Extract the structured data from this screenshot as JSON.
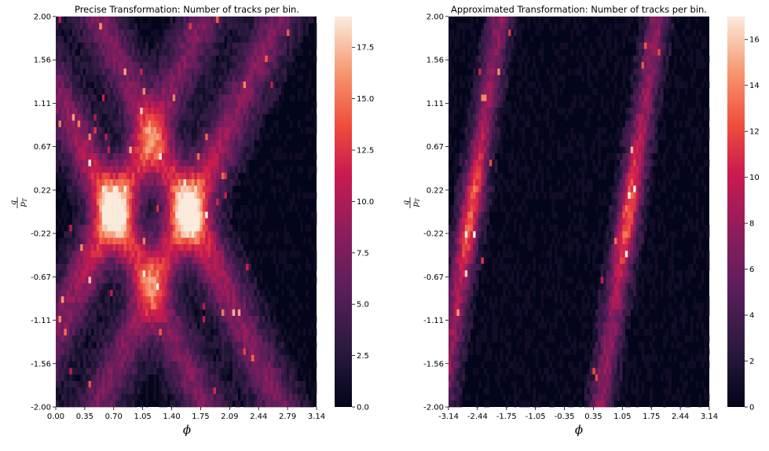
{
  "chart_data": [
    {
      "type": "heatmap",
      "title": "Precise Transformation: Number of tracks per bin.",
      "xlabel": "ϕ",
      "ylabel_num": "q",
      "ylabel_den": "p_T",
      "x_ticks": [
        "0.00",
        "0.35",
        "0.70",
        "1.05",
        "1.40",
        "1.75",
        "2.09",
        "2.44",
        "2.79",
        "3.14"
      ],
      "y_ticks": [
        "2.00",
        "1.56",
        "1.11",
        "0.67",
        "0.22",
        "-0.22",
        "-0.67",
        "-1.11",
        "-1.56",
        "-2.00"
      ],
      "xlim": [
        0,
        3.14
      ],
      "ylim": [
        -2.0,
        2.0
      ],
      "colorbar_ticks": [
        "0.0",
        "2.5",
        "5.0",
        "7.5",
        "10.0",
        "12.5",
        "15.0",
        "17.5"
      ],
      "colorbar_range": [
        0,
        19
      ],
      "colormap": "rocket",
      "pattern": "sinusoidal band crossing pattern; bands converge near phi 0.7 and phi 2.0 with peak ~19 tracks",
      "band_centers": [
        {
          "name": "band-a",
          "phi_at_q0": 0.7,
          "slope": 0.55
        },
        {
          "name": "band-b",
          "phi_at_q0": 0.7,
          "slope": -0.55
        },
        {
          "name": "band-c",
          "phi_at_q0": 1.6,
          "slope": 0.55
        },
        {
          "name": "band-d",
          "phi_at_q0": 1.6,
          "slope": -0.55
        }
      ]
    },
    {
      "type": "heatmap",
      "title": "Approximated Transformation: Number of tracks per bin.",
      "xlabel": "ϕ",
      "ylabel_num": "q",
      "ylabel_den": "p_T",
      "x_ticks": [
        "-3.14",
        "-2.44",
        "-1.75",
        "-1.05",
        "-0.35",
        "0.35",
        "1.05",
        "1.75",
        "2.44",
        "3.14"
      ],
      "y_ticks": [
        "2.00",
        "1.56",
        "1.11",
        "0.67",
        "0.22",
        "-0.22",
        "-0.67",
        "-1.11",
        "-1.56",
        "-2.00"
      ],
      "xlim": [
        -3.14,
        3.14
      ],
      "ylim": [
        -2.0,
        2.0
      ],
      "colorbar_ticks": [
        "0",
        "2",
        "4",
        "6",
        "8",
        "10",
        "12",
        "14",
        "16"
      ],
      "colorbar_range": [
        0,
        17
      ],
      "colormap": "rocket",
      "pattern": "two diagonal band groups; bright lines near phi 1.05-1.9 with peak ~17 tracks",
      "band_centers": [
        {
          "name": "band-left",
          "phi_at_q0": -2.6,
          "slope": 0.35
        },
        {
          "name": "band-right",
          "phi_at_q0": 1.2,
          "slope": 0.35
        }
      ]
    }
  ]
}
